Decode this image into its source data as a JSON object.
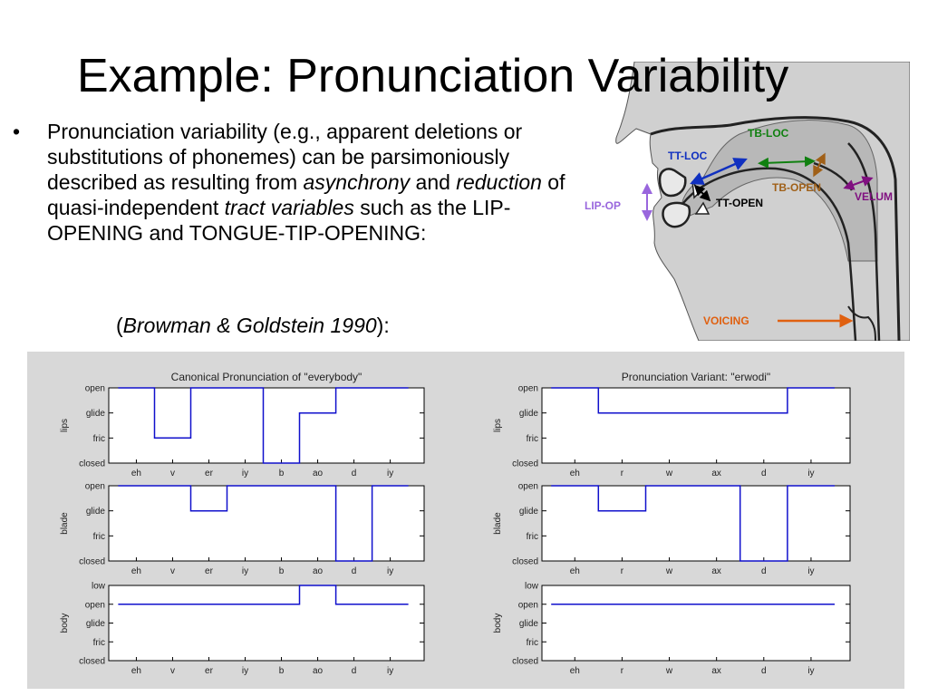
{
  "slide": {
    "title": "Example: Pronunciation Variability",
    "bullet": {
      "t1": "Pronunciation variability (e.g., apparent deletions or substitutions of phonemes) can be parsimoniously described as resulting from ",
      "em1": "asynchrony",
      "t2": " and ",
      "em2": "reduction",
      "t3": " of quasi-independent ",
      "em3": "tract variables",
      "t4": " such as the LIP-OPENING and TONGUE-TIP-OPENING:"
    },
    "citation": {
      "open": "(",
      "ref": "Browman & Goldstein 1990",
      "close": "):"
    }
  },
  "vocal_tract": {
    "labels": {
      "tb_loc": "TB-LOC",
      "tt_loc": "TT-LOC",
      "tb_open": "TB-OPEN",
      "velum": "VELUM",
      "lip_op": "LIP-OP",
      "tt_open": "TT-OPEN",
      "voicing": "VOICING"
    },
    "colors": {
      "tb_loc": "#108010",
      "tt_loc": "#1030c0",
      "tb_open": "#a06018",
      "velum": "#801080",
      "lip_op": "#9966dd",
      "tt_open": "#000000",
      "voicing": "#e06010"
    }
  },
  "chart_data": [
    {
      "type": "line",
      "title": "Canonical Pronunciation of \"everybody\"",
      "ylabel": "lips",
      "levels": [
        "closed",
        "fric",
        "glide",
        "open"
      ],
      "categories": [
        "eh",
        "v",
        "er",
        "iy",
        "b",
        "ao",
        "d",
        "iy"
      ],
      "steps": [
        [
          "open",
          0,
          1
        ],
        [
          "fric",
          1,
          2
        ],
        [
          "open",
          2,
          4
        ],
        [
          "closed",
          4,
          5
        ],
        [
          "glide",
          5,
          6
        ],
        [
          "open",
          6,
          8
        ]
      ]
    },
    {
      "type": "line",
      "ylabel": "blade",
      "levels": [
        "closed",
        "fric",
        "glide",
        "open"
      ],
      "categories": [
        "eh",
        "v",
        "er",
        "iy",
        "b",
        "ao",
        "d",
        "iy"
      ],
      "steps": [
        [
          "open",
          0,
          2
        ],
        [
          "glide",
          2,
          3
        ],
        [
          "open",
          3,
          6
        ],
        [
          "closed",
          6,
          7
        ],
        [
          "open",
          7,
          8
        ]
      ]
    },
    {
      "type": "line",
      "ylabel": "body",
      "levels": [
        "closed",
        "fric",
        "glide",
        "open",
        "low"
      ],
      "categories": [
        "eh",
        "v",
        "er",
        "iy",
        "b",
        "ao",
        "d",
        "iy"
      ],
      "steps": [
        [
          "open",
          0,
          5
        ],
        [
          "low",
          5,
          6
        ],
        [
          "open",
          6,
          8
        ]
      ]
    },
    {
      "type": "line",
      "title": "Pronunciation Variant: \"erwodi\"",
      "ylabel": "lips",
      "levels": [
        "closed",
        "fric",
        "glide",
        "open"
      ],
      "categories": [
        "eh",
        "r",
        "w",
        "ax",
        "d",
        "iy"
      ],
      "steps": [
        [
          "open",
          0,
          1
        ],
        [
          "glide",
          1,
          5
        ],
        [
          "open",
          5,
          6
        ]
      ]
    },
    {
      "type": "line",
      "ylabel": "blade",
      "levels": [
        "closed",
        "fric",
        "glide",
        "open"
      ],
      "categories": [
        "eh",
        "r",
        "w",
        "ax",
        "d",
        "iy"
      ],
      "steps": [
        [
          "open",
          0,
          1
        ],
        [
          "glide",
          1,
          2
        ],
        [
          "open",
          2,
          4
        ],
        [
          "closed",
          4,
          5
        ],
        [
          "open",
          5,
          6
        ]
      ]
    },
    {
      "type": "line",
      "ylabel": "body",
      "levels": [
        "closed",
        "fric",
        "glide",
        "open",
        "low"
      ],
      "categories": [
        "eh",
        "r",
        "w",
        "ax",
        "d",
        "iy"
      ],
      "steps": [
        [
          "open",
          0,
          6
        ]
      ]
    }
  ]
}
